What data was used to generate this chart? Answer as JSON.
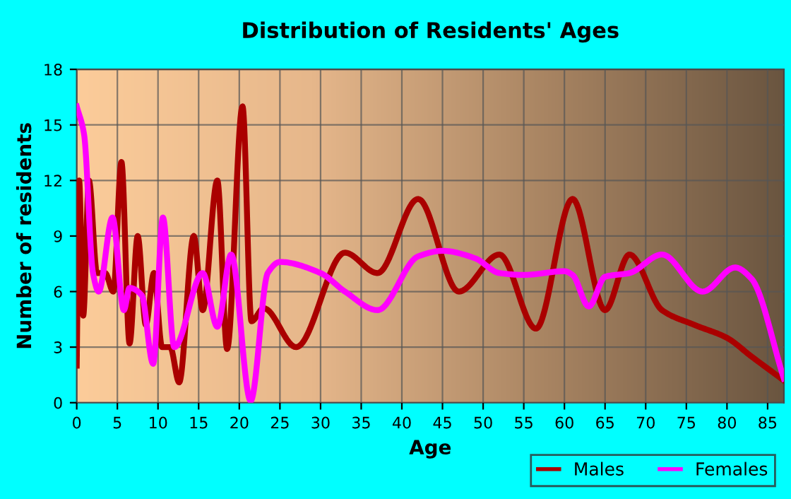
{
  "chart_data": {
    "type": "line",
    "title": "Distribution of Residents' Ages",
    "xlabel": "Age",
    "ylabel": "Number of residents",
    "xlim": [
      0,
      87
    ],
    "xticks": [
      0,
      5,
      10,
      15,
      20,
      25,
      30,
      35,
      40,
      45,
      50,
      55,
      60,
      65,
      70,
      75,
      80,
      85
    ],
    "ylim": [
      0,
      18
    ],
    "yticks": [
      0,
      3,
      6,
      9,
      12,
      15,
      18
    ],
    "grid": true,
    "legend": "bottom right",
    "marker": "none",
    "line_style": "solid",
    "series": [
      {
        "name": "Males",
        "color": "#aa0000",
        "x": [
          0,
          0.3,
          0.8,
          1.5,
          2.5,
          3.5,
          4.5,
          5.5,
          6.5,
          7.5,
          8.5,
          9.5,
          10.5,
          11.5,
          12.6,
          14.4,
          15.5,
          17.3,
          18.5,
          20.4,
          21.5,
          23,
          27,
          33,
          37,
          42,
          47,
          52,
          56.5,
          61,
          65,
          68,
          72,
          76,
          80,
          83,
          87
        ],
        "values": [
          2,
          12,
          4.7,
          12,
          7,
          7,
          6,
          13,
          3.2,
          9,
          4.2,
          7,
          3,
          3,
          1.1,
          9,
          5,
          12,
          2.9,
          16,
          4.4,
          5.1,
          3,
          8.1,
          7,
          11,
          6,
          8,
          4,
          11,
          5,
          8,
          5,
          4.2,
          3.5,
          2.5,
          1.2
        ]
      },
      {
        "name": "Females",
        "color": "#ff00ff",
        "x": [
          0,
          0.9,
          2,
          2.7,
          4.4,
          5.8,
          6.5,
          8,
          9.4,
          10.6,
          12,
          15.5,
          17.3,
          19,
          21.4,
          23.5,
          25,
          30,
          33,
          37,
          42,
          45,
          49,
          52,
          55,
          60,
          61,
          63,
          65,
          68,
          72,
          77,
          81,
          83,
          87
        ],
        "values": [
          16,
          14.5,
          7,
          6,
          10,
          5,
          6.2,
          5.8,
          2.1,
          10,
          3,
          7,
          4.1,
          8,
          0.1,
          7,
          7.6,
          7,
          6,
          5,
          7.9,
          8.2,
          7.8,
          7,
          6.9,
          7.1,
          6.9,
          5.2,
          6.8,
          7,
          8,
          6,
          7.3,
          6.7,
          1.3
        ]
      }
    ]
  }
}
